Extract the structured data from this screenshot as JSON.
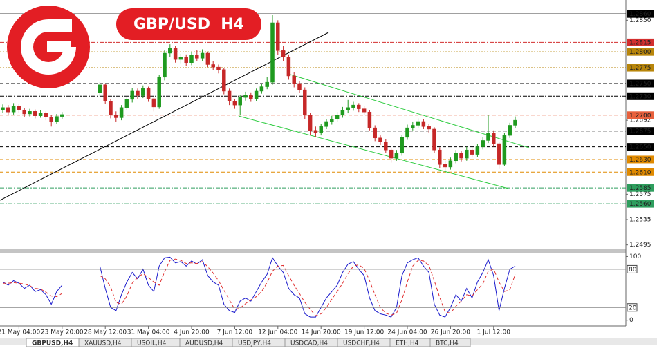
{
  "chart_data": [
    {
      "type": "candlestick",
      "title": "GBP/USD  H4",
      "categories": [
        null,
        null,
        null,
        "21 May 04:00",
        null,
        null,
        null,
        null,
        null,
        null,
        null,
        "23 May 20:00",
        null,
        null,
        null,
        null,
        null,
        null,
        null,
        "28 May 12:00",
        null,
        null,
        null,
        null,
        null,
        null,
        null,
        "31 May 04:00",
        null,
        null,
        null,
        null,
        null,
        null,
        null,
        "4 Jun 20:00",
        null,
        null,
        null,
        null,
        null,
        null,
        null,
        "7 Jun 12:00",
        null,
        null,
        null,
        null,
        null,
        null,
        null,
        "12 Jun 04:00",
        null,
        null,
        null,
        null,
        null,
        null,
        null,
        "14 Jun 20:00",
        null,
        null,
        null,
        null,
        null,
        null,
        null,
        "19 Jun 12:00",
        null,
        null,
        null,
        null,
        null,
        null,
        null,
        "24 Jun 04:00",
        null,
        null,
        null,
        null,
        null,
        null,
        null,
        "26 Jun 20:00",
        null,
        null,
        null,
        null,
        null,
        null,
        null,
        "1 Jul 12:00",
        null,
        null,
        null,
        null
      ],
      "open": [
        1.2708,
        1.2712,
        1.2705,
        1.2714,
        1.2708,
        1.2702,
        1.2706,
        1.2699,
        1.2703,
        1.2697,
        1.269,
        1.2698,
        null,
        null,
        null,
        null,
        null,
        null,
        1.2735,
        1.2748,
        1.2722,
        1.27,
        1.2696,
        1.2712,
        1.2725,
        1.2738,
        1.2731,
        1.2742,
        1.2726,
        1.2713,
        1.276,
        1.2798,
        1.2806,
        1.2788,
        1.2792,
        1.2783,
        1.2795,
        1.279,
        1.2798,
        1.278,
        1.2776,
        1.2772,
        1.2738,
        1.2722,
        1.2716,
        1.2728,
        1.2732,
        1.2726,
        1.2738,
        1.2745,
        1.2752,
        1.2846,
        1.2802,
        1.2792,
        1.2762,
        1.275,
        1.274,
        1.27,
        1.2676,
        1.2672,
        1.2682,
        1.269,
        1.2694,
        1.27,
        1.2708,
        1.2712,
        1.2716,
        1.271,
        1.2705,
        1.268,
        1.2664,
        1.2658,
        1.2645,
        1.2632,
        1.264,
        1.2665,
        1.268,
        1.2684,
        1.269,
        1.2682,
        1.2678,
        1.2645,
        1.2622,
        1.2618,
        1.2628,
        1.264,
        1.2632,
        1.2645,
        1.2638,
        1.265,
        1.266,
        1.2672,
        1.2655,
        1.2622,
        1.2668,
        1.2684
      ],
      "high": [
        1.2717,
        1.2716,
        1.2719,
        1.2718,
        1.2711,
        1.271,
        1.2709,
        1.2708,
        1.2706,
        1.27,
        1.2702,
        1.2705,
        null,
        null,
        null,
        null,
        null,
        null,
        1.2752,
        1.275,
        1.2726,
        1.2706,
        1.2716,
        1.2729,
        1.2743,
        1.2742,
        1.2747,
        1.2745,
        1.273,
        1.2764,
        1.2803,
        1.2812,
        1.281,
        1.2797,
        1.2796,
        1.28,
        1.2803,
        1.2804,
        1.28,
        1.2785,
        1.278,
        1.2775,
        1.2742,
        1.2726,
        1.2732,
        1.2737,
        1.2736,
        1.2742,
        1.275,
        1.276,
        1.2858,
        1.285,
        1.281,
        1.2796,
        1.2768,
        1.2754,
        1.2744,
        1.2704,
        1.2682,
        1.2686,
        1.2694,
        1.2699,
        1.2705,
        1.2713,
        1.2724,
        1.2721,
        1.2719,
        1.2714,
        1.2708,
        1.2684,
        1.2668,
        1.2662,
        1.2648,
        1.2645,
        1.2669,
        1.2685,
        1.269,
        1.2695,
        1.2694,
        1.2686,
        1.2681,
        1.2649,
        1.2628,
        1.2633,
        1.2645,
        1.2644,
        1.265,
        1.2649,
        1.2655,
        1.2665,
        1.27,
        1.2676,
        1.2658,
        1.2672,
        1.2688,
        1.2698
      ],
      "low": [
        1.2703,
        1.27,
        1.2701,
        1.2704,
        1.2697,
        1.2698,
        1.2695,
        1.2696,
        1.2692,
        1.2682,
        1.2686,
        1.2694,
        null,
        null,
        null,
        null,
        null,
        null,
        1.273,
        1.2718,
        1.2695,
        1.269,
        1.2692,
        1.2708,
        1.272,
        1.2726,
        1.2727,
        1.2721,
        1.2706,
        1.271,
        1.2755,
        1.2792,
        1.2783,
        1.2782,
        1.2778,
        1.2779,
        1.2786,
        1.2786,
        1.2776,
        1.2771,
        1.2766,
        1.2733,
        1.2716,
        1.271,
        1.27,
        1.2723,
        1.2721,
        1.2722,
        1.2734,
        1.2741,
        1.2748,
        1.2795,
        1.2785,
        1.2756,
        1.2744,
        1.2735,
        1.2694,
        1.2668,
        1.2666,
        1.2668,
        1.2678,
        1.2685,
        1.269,
        1.2696,
        1.2703,
        1.2707,
        1.2705,
        1.27,
        1.2676,
        1.2659,
        1.2653,
        1.264,
        1.2625,
        1.2628,
        1.2636,
        1.2661,
        1.2676,
        1.268,
        1.2678,
        1.2672,
        1.264,
        1.2616,
        1.2612,
        1.2614,
        1.2624,
        1.2627,
        1.2628,
        1.2633,
        1.2634,
        1.2646,
        1.2656,
        1.265,
        1.2615,
        1.262,
        1.2664,
        1.268
      ],
      "close": [
        1.2712,
        1.2705,
        1.2714,
        1.2708,
        1.2702,
        1.2706,
        1.2699,
        1.2703,
        1.2697,
        1.269,
        1.2698,
        1.2701,
        null,
        null,
        null,
        null,
        null,
        null,
        1.2748,
        1.2722,
        1.27,
        1.2696,
        1.2712,
        1.2725,
        1.2738,
        1.2731,
        1.2742,
        1.2726,
        1.2713,
        1.276,
        1.2798,
        1.2806,
        1.2788,
        1.2792,
        1.2783,
        1.2795,
        1.279,
        1.2798,
        1.278,
        1.2776,
        1.2772,
        1.2738,
        1.2722,
        1.2716,
        1.2728,
        1.2732,
        1.2726,
        1.2738,
        1.2745,
        1.2752,
        1.2846,
        1.2802,
        1.2792,
        1.2762,
        1.275,
        1.274,
        1.27,
        1.2676,
        1.2672,
        1.2682,
        1.269,
        1.2694,
        1.27,
        1.2708,
        1.2712,
        1.2716,
        1.271,
        1.2705,
        1.268,
        1.2664,
        1.2658,
        1.2645,
        1.2632,
        1.264,
        1.2665,
        1.268,
        1.2684,
        1.269,
        1.2682,
        1.2678,
        1.2645,
        1.2622,
        1.2618,
        1.2628,
        1.264,
        1.2632,
        1.2645,
        1.2638,
        1.265,
        1.266,
        1.2672,
        1.2655,
        1.2622,
        1.2668,
        1.2684,
        1.2692
      ],
      "up_color": "#1f9a1f",
      "down_color": "#c62828",
      "ylim": [
        1.2487,
        1.2882
      ],
      "yticks": [
        {
          "value": 1.285,
          "label": "1.2850"
        },
        {
          "value": 1.2692,
          "label": "1.2692"
        },
        {
          "value": 1.2575,
          "label": "1.2575"
        },
        {
          "value": 1.2535,
          "label": "1.2535"
        },
        {
          "value": 1.2495,
          "label": "1.2495"
        }
      ],
      "levels": [
        {
          "value": 1.286,
          "label": "1.2860",
          "color": "#000000",
          "style": "solid"
        },
        {
          "value": 1.2815,
          "label": "1.2815",
          "color": "#d32f2f",
          "style": "dashdot"
        },
        {
          "value": 1.28,
          "label": "1.2800",
          "color": "#b8860b",
          "style": "dotted"
        },
        {
          "value": 1.2775,
          "label": "1.2775",
          "color": "#b8860b",
          "style": "dotted"
        },
        {
          "value": 1.275,
          "label": "1.2750",
          "color": "#000000",
          "style": "dashed"
        },
        {
          "value": 1.273,
          "label": "1.2730",
          "color": "#000000",
          "style": "dashdot"
        },
        {
          "value": 1.27,
          "label": "1.2700",
          "color": "#e8603c",
          "style": "dashed"
        },
        {
          "value": 1.2675,
          "label": "1.2675",
          "color": "#000000",
          "style": "dashed"
        },
        {
          "value": 1.265,
          "label": "1.2650",
          "color": "#000000",
          "style": "dashed"
        },
        {
          "value": 1.263,
          "label": "1.2630",
          "color": "#e08a00",
          "style": "dashed"
        },
        {
          "value": 1.261,
          "label": "1.2610",
          "color": "#e08a00",
          "style": "dashed"
        },
        {
          "value": 1.2585,
          "label": "1.2585",
          "color": "#2e9e5e",
          "style": "dashdot"
        },
        {
          "value": 1.256,
          "label": "1.2560",
          "color": "#2e9e5e",
          "style": "dashdot"
        }
      ]
    },
    {
      "type": "line",
      "series": [
        {
          "color": "#1a1acc",
          "style": "solid",
          "values": [
            60,
            55,
            62,
            58,
            50,
            55,
            45,
            48,
            40,
            25,
            45,
            55,
            null,
            null,
            null,
            null,
            null,
            null,
            85,
            50,
            20,
            15,
            40,
            60,
            75,
            65,
            80,
            55,
            45,
            85,
            98,
            99,
            90,
            92,
            85,
            93,
            88,
            95,
            70,
            60,
            55,
            25,
            15,
            12,
            30,
            35,
            30,
            45,
            60,
            72,
            98,
            85,
            75,
            50,
            40,
            35,
            10,
            5,
            5,
            20,
            35,
            45,
            55,
            75,
            88,
            92,
            80,
            70,
            35,
            15,
            10,
            8,
            5,
            20,
            70,
            90,
            95,
            98,
            85,
            75,
            25,
            8,
            5,
            20,
            40,
            30,
            50,
            35,
            60,
            75,
            95,
            70,
            15,
            50,
            80,
            85
          ]
        },
        {
          "color": "#e03030",
          "style": "dashed",
          "values": [
            58,
            58,
            59,
            58,
            57,
            54,
            50,
            49,
            44,
            38,
            37,
            42,
            null,
            null,
            null,
            null,
            null,
            null,
            70,
            65,
            52,
            28,
            25,
            38,
            58,
            67,
            73,
            67,
            60,
            55,
            76,
            94,
            96,
            94,
            89,
            90,
            89,
            92,
            84,
            74,
            62,
            47,
            32,
            17,
            19,
            26,
            32,
            37,
            45,
            59,
            77,
            85,
            86,
            70,
            55,
            42,
            28,
            17,
            7,
            10,
            20,
            33,
            45,
            58,
            73,
            85,
            87,
            81,
            62,
            40,
            20,
            11,
            8,
            11,
            32,
            60,
            85,
            94,
            93,
            86,
            62,
            36,
            13,
            11,
            22,
            30,
            40,
            38,
            48,
            57,
            77,
            80,
            60,
            45,
            48,
            72
          ]
        }
      ],
      "ylim": [
        -9,
        107
      ],
      "yticks": [
        0,
        100
      ],
      "levels": [
        20,
        80
      ]
    }
  ],
  "tabs": [
    "GBPUSD,H4",
    "XAUUSD,H4",
    "USOIL,H4",
    "AUDUSD,H4",
    "USDJPY,H4",
    "USDCAD,H4",
    "USDCHF,H4",
    "ETH,H4",
    "BTC,H4"
  ]
}
